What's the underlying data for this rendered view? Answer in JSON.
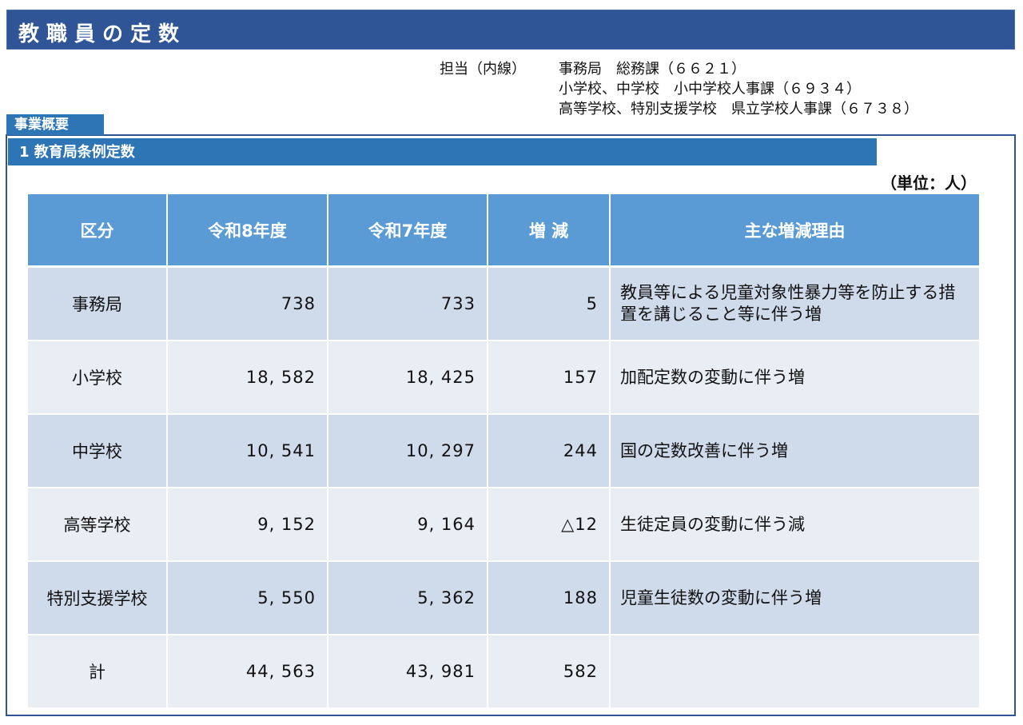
{
  "title": "教職員の定数",
  "contact": {
    "label": "担当（内線）",
    "lines": [
      "事務局　総務課（６６２１）",
      "小学校、中学校　小中学校人事課（６９３４）",
      "高等学校、特別支援学校　県立学校人事課（６７３８）"
    ]
  },
  "tab_label": "事業概要",
  "section_title": "1  教育局条例定数",
  "unit": "（単位：人）",
  "table": {
    "headers": [
      "区分",
      "令和8年度",
      "令和7年度",
      "増 減",
      "主な増減理由"
    ],
    "rows": [
      {
        "category": "事務局",
        "r8": "738",
        "r7": "733",
        "diff": "5",
        "reason": "教員等による児童対象性暴力等を防止する措置を講じること等に伴う増"
      },
      {
        "category": "小学校",
        "r8": "18, 582",
        "r7": "18, 425",
        "diff": "157",
        "reason": "加配定数の変動に伴う増"
      },
      {
        "category": "中学校",
        "r8": "10, 541",
        "r7": "10, 297",
        "diff": "244",
        "reason": "国の定数改善に伴う増"
      },
      {
        "category": "高等学校",
        "r8": "9, 152",
        "r7": "9, 164",
        "diff": "△12",
        "reason": "生徒定員の変動に伴う減"
      },
      {
        "category": "特別支援学校",
        "r8": "5, 550",
        "r7": "5, 362",
        "diff": "188",
        "reason": "児童生徒数の変動に伴う増"
      },
      {
        "category": "計",
        "r8": "44, 563",
        "r7": "43, 981",
        "diff": "582",
        "reason": ""
      }
    ]
  },
  "colors": {
    "title_bar": "#2f5597",
    "section_bar": "#2e75b6",
    "header": "#5b9bd5",
    "row_dark": "#cfdaeb",
    "row_light": "#e9edf4"
  }
}
